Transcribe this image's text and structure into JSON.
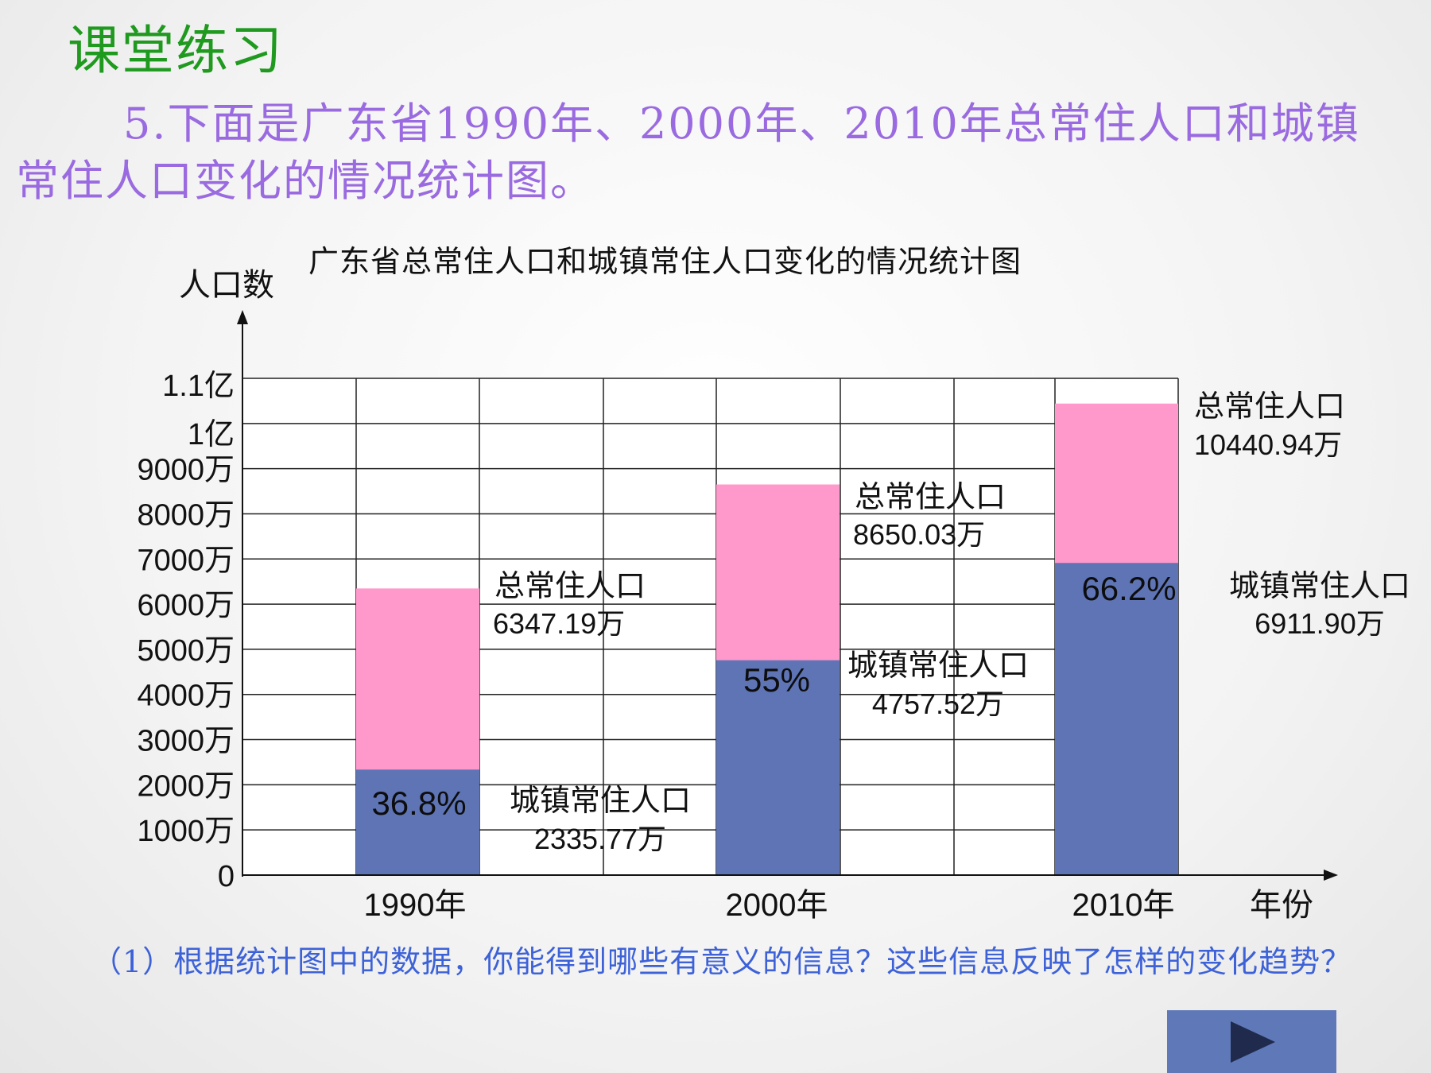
{
  "heading": "课堂练习",
  "problem_text": "5.下面是广东省1990年、2000年、2010年总常住人口和城镇常住人口变化的情况统计图。",
  "question_text": "（1）根据统计图中的数据，你能得到哪些有意义的信息？这些信息反映了怎样的变化趋势？",
  "chart_data": {
    "type": "bar",
    "title": "广东省总常住人口和城镇常住人口变化的情况统计图",
    "ylabel": "人口数",
    "xlabel": "年份",
    "categories": [
      "1990年",
      "2000年",
      "2010年"
    ],
    "ylim": [
      0,
      11000
    ],
    "y_ticks": [
      {
        "value": 0,
        "label": "0"
      },
      {
        "value": 1000,
        "label": "1000万"
      },
      {
        "value": 2000,
        "label": "2000万"
      },
      {
        "value": 3000,
        "label": "3000万"
      },
      {
        "value": 4000,
        "label": "4000万"
      },
      {
        "value": 5000,
        "label": "5000万"
      },
      {
        "value": 6000,
        "label": "6000万"
      },
      {
        "value": 7000,
        "label": "7000万"
      },
      {
        "value": 8000,
        "label": "8000万"
      },
      {
        "value": 9000,
        "label": "9000万"
      },
      {
        "value": 10000,
        "label": "1亿"
      },
      {
        "value": 11000,
        "label": "1.1亿"
      }
    ],
    "grid": true,
    "series": [
      {
        "key": "total",
        "values": [
          6347.19,
          8650.03,
          10440.94
        ],
        "color": "#ff99cc"
      },
      {
        "key": "urban",
        "values": [
          2335.77,
          4757.52,
          6911.9
        ],
        "color": "#5e74b5"
      }
    ],
    "percent_labels": [
      "36.8%",
      "55%",
      "66.2%"
    ],
    "annotations": [
      {
        "line1": "总常住人口",
        "line2": "6347.19万"
      },
      {
        "line1": "城镇常住人口",
        "line2": "2335.77万"
      },
      {
        "line1": "总常住人口",
        "line2": "8650.03万"
      },
      {
        "line1": "城镇常住人口",
        "line2": "4757.52万"
      },
      {
        "line1": "总常住人口",
        "line2": "10440.94万"
      },
      {
        "line1": "城镇常住人口",
        "line2": "6911.90万"
      }
    ]
  },
  "nav": {
    "next_icon": "play-triangle-icon"
  }
}
